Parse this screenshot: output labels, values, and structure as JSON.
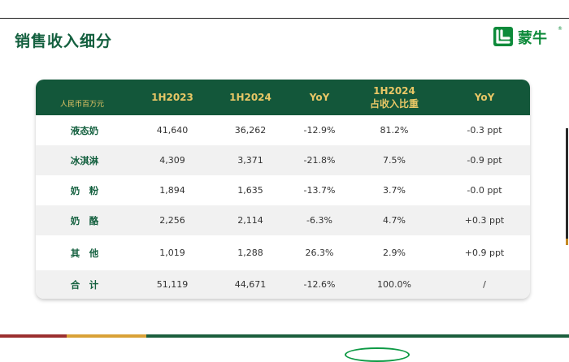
{
  "page": {
    "title": "销售收入细分"
  },
  "logo": {
    "text": "蒙牛",
    "registered": "®"
  },
  "table": {
    "unit": "人民币百万元",
    "headers": {
      "h2023": "1H2023",
      "h2024": "1H2024",
      "yoy": "YoY",
      "share_line1": "1H2024",
      "share_line2": "占收入比重",
      "share_yoy": "YoY"
    },
    "rows": [
      {
        "category": "液态奶",
        "h2023": "41,640",
        "h2024": "36,262",
        "yoy": "-12.9%",
        "share": "81.2%",
        "share_yoy": "-0.3 ppt"
      },
      {
        "category": "冰淇淋",
        "h2023": "4,309",
        "h2024": "3,371",
        "yoy": "-21.8%",
        "share": "7.5%",
        "share_yoy": "-0.9 ppt"
      },
      {
        "category": "奶　粉",
        "h2023": "1,894",
        "h2024": "1,635",
        "yoy": "-13.7%",
        "share": "3.7%",
        "share_yoy": "-0.0 ppt"
      },
      {
        "category": "奶　酪",
        "h2023": "2,256",
        "h2024": "2,114",
        "yoy": "-6.3%",
        "share": "4.7%",
        "share_yoy": "+0.3 ppt"
      },
      {
        "category": "其　他",
        "h2023": "1,019",
        "h2024": "1,288",
        "yoy": "26.3%",
        "share": "2.9%",
        "share_yoy": "+0.9 ppt"
      },
      {
        "category": "合　计",
        "h2023": "51,119",
        "h2024": "44,671",
        "yoy": "-12.6%",
        "share": "100.0%",
        "share_yoy": "/"
      }
    ]
  },
  "colors": {
    "brand_green": "#13573a",
    "header_text_gold": "#e8c766",
    "title_green": "#14603f",
    "logo_green": "#0d8a3a",
    "footer_red": "#9b2f2f",
    "footer_gold": "#d9a137",
    "footer_green": "#1b5f3d"
  }
}
